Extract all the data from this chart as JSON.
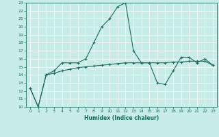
{
  "title": "",
  "xlabel": "Humidex (Indice chaleur)",
  "ylabel": "",
  "bg_color": "#c8ece8",
  "grid_color": "#ffffff",
  "line_color": "#1a6b5a",
  "xlim": [
    -0.5,
    23.5
  ],
  "ylim": [
    10,
    23
  ],
  "xticks": [
    0,
    1,
    2,
    3,
    4,
    5,
    6,
    7,
    8,
    9,
    10,
    11,
    12,
    13,
    14,
    15,
    16,
    17,
    18,
    19,
    20,
    21,
    22,
    23
  ],
  "yticks": [
    10,
    11,
    12,
    13,
    14,
    15,
    16,
    17,
    18,
    19,
    20,
    21,
    22,
    23
  ],
  "series1_x": [
    0,
    1,
    2,
    3,
    4,
    5,
    6,
    7,
    8,
    9,
    10,
    11,
    12,
    13,
    14,
    15,
    16,
    17,
    18,
    19,
    20,
    21,
    22,
    23
  ],
  "series1_y": [
    12.3,
    10.0,
    14.0,
    14.5,
    15.5,
    15.5,
    15.5,
    16.0,
    18.0,
    20.0,
    21.0,
    22.5,
    23.0,
    17.0,
    15.5,
    15.5,
    13.0,
    12.8,
    14.5,
    16.2,
    16.2,
    15.5,
    16.0,
    15.2
  ],
  "series2_x": [
    0,
    1,
    2,
    3,
    4,
    5,
    6,
    7,
    8,
    9,
    10,
    11,
    12,
    13,
    14,
    15,
    16,
    17,
    18,
    19,
    20,
    21,
    22,
    23
  ],
  "series2_y": [
    12.3,
    10.0,
    14.0,
    14.2,
    14.5,
    14.7,
    14.9,
    15.0,
    15.1,
    15.2,
    15.3,
    15.4,
    15.5,
    15.5,
    15.5,
    15.5,
    15.5,
    15.5,
    15.6,
    15.6,
    15.7,
    15.7,
    15.7,
    15.2
  ]
}
